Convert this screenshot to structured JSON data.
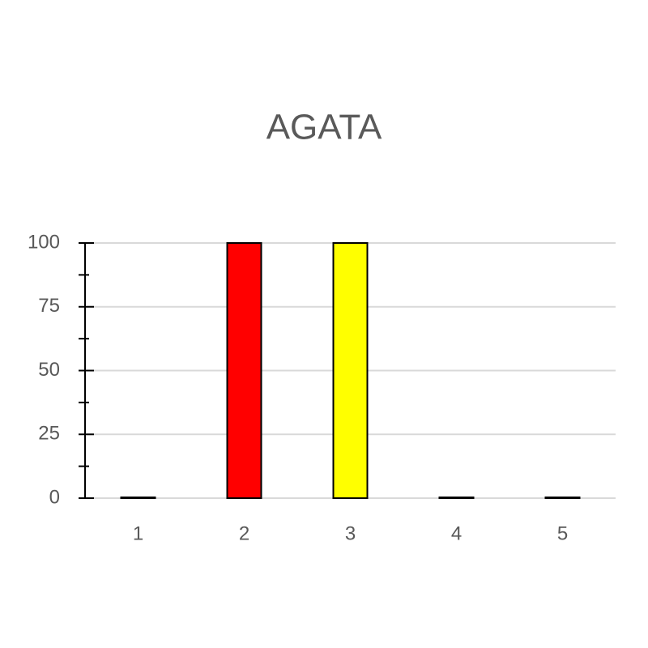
{
  "chart_data": {
    "type": "bar",
    "title": "AGATA",
    "categories": [
      "1",
      "2",
      "3",
      "4",
      "5"
    ],
    "values": [
      0,
      100,
      100,
      0,
      0
    ],
    "colors": [
      "#ffffff",
      "#ff0000",
      "#ffff00",
      "#ffffff",
      "#ffffff"
    ],
    "ylim": [
      0,
      100
    ],
    "yticks": [
      0,
      25,
      50,
      75,
      100
    ],
    "grid": true
  }
}
